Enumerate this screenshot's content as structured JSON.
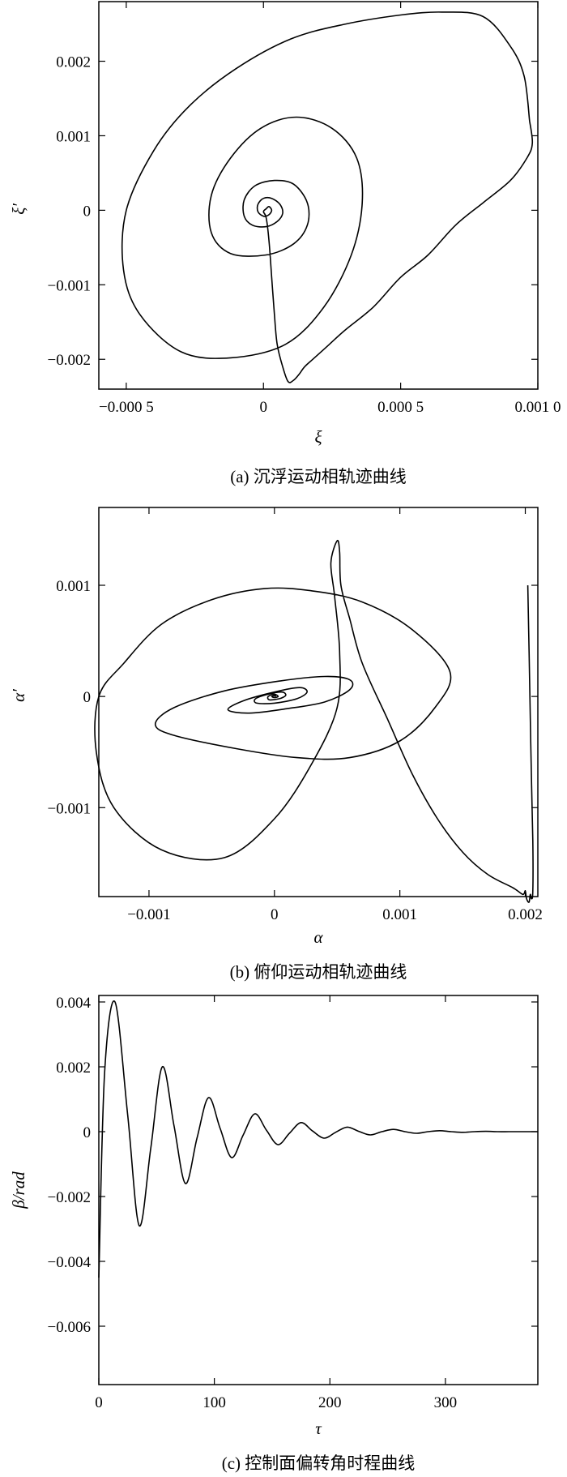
{
  "colors": {
    "line": "#000000",
    "background": "#ffffff"
  },
  "chart_data": [
    {
      "type": "line",
      "panel": "a",
      "caption": "(a) 沉浮运动相轨迹曲线",
      "xlabel": "ξ",
      "ylabel": "ξ′",
      "xlim": [
        -0.0006,
        0.001
      ],
      "ylim": [
        -0.0024,
        0.0028
      ],
      "xticks": [
        -0.0005,
        0,
        0.0005,
        0.001
      ],
      "xtick_labels": [
        "−0.000 5",
        "0",
        "0.000 5",
        "0.001 0"
      ],
      "yticks": [
        -0.002,
        -0.001,
        0,
        0.001,
        0.002
      ],
      "ytick_labels": [
        "−0.002",
        "−0.001",
        "0",
        "0.001",
        "0.002"
      ],
      "grid": false,
      "series": [
        {
          "x": [
            0.00097,
            0.00095,
            0.0009,
            0.0008,
            0.00065,
            0.0005,
            0.0003,
            0.0001,
            -0.0001,
            -0.00027,
            -0.0004,
            -0.0005,
            -0.00051,
            -0.00045,
            -0.0003,
            -0.00012,
            8e-05,
            0.00022,
            0.00032,
            0.00036,
            0.00034,
            0.00025,
            0.00012,
            -1e-05,
            -0.00012,
            -0.00019,
            -0.00019,
            -0.00012,
            1e-05,
            0.00011,
            0.00016,
            0.00016,
            0.00011,
            4e-05,
            -3e-05,
            -7e-05,
            -7e-05,
            -4e-05,
            1e-05,
            5e-05,
            7e-05,
            6e-05,
            3e-05,
            0.0,
            -2e-05,
            -2e-05,
            0.0,
            2e-05,
            3e-05,
            2e-05,
            1e-05,
            0.0,
            1e-05,
            2e-05,
            3e-05,
            4e-05,
            5e-05,
            7e-05,
            9e-05,
            0.00011,
            0.00013,
            0.00015,
            0.00018,
            0.00024,
            0.0003,
            0.0004,
            0.0005,
            0.0006,
            0.0007,
            0.0008,
            0.0009,
            0.00096,
            0.00098,
            0.00097
          ],
          "y": [
            0.0012,
            0.0018,
            0.0022,
            0.0026,
            0.00266,
            0.00262,
            0.0025,
            0.0023,
            0.0019,
            0.0014,
            0.0008,
            0.0,
            -0.0008,
            -0.0014,
            -0.0019,
            -0.00198,
            -0.0018,
            -0.0013,
            -0.0006,
            0.0001,
            0.0007,
            0.0011,
            0.00125,
            0.0011,
            0.0007,
            0.0002,
            -0.0003,
            -0.00058,
            -0.0006,
            -0.00045,
            -0.0002,
            0.0001,
            0.00035,
            0.0004,
            0.00033,
            0.00014,
            -8e-05,
            -0.0002,
            -0.00022,
            -0.00015,
            -4e-05,
            8e-05,
            0.00016,
            0.00016,
            8e-05,
            -2e-05,
            -8e-05,
            -6e-05,
            0.0,
            5e-05,
            2e-05,
            -2e-05,
            -0.0001,
            -0.0004,
            -0.0009,
            -0.0014,
            -0.0018,
            -0.0021,
            -0.0023,
            -0.00228,
            -0.0022,
            -0.0021,
            -0.002,
            -0.0018,
            -0.0016,
            -0.0013,
            -0.0009,
            -0.0006,
            -0.0002,
            0.0001,
            0.0004,
            0.0007,
            0.0009,
            0.0012
          ]
        }
      ]
    },
    {
      "type": "line",
      "panel": "b",
      "caption": "(b) 俯仰运动相轨迹曲线",
      "xlabel": "α",
      "ylabel": "α′",
      "xlim": [
        -0.0014,
        0.0021
      ],
      "ylim": [
        -0.0018,
        0.0017
      ],
      "xticks": [
        -0.001,
        0,
        0.001,
        0.002
      ],
      "xtick_labels": [
        "−0.001",
        "0",
        "0.001",
        "0.002"
      ],
      "yticks": [
        -0.001,
        0,
        0.001
      ],
      "ytick_labels": [
        "−0.001",
        "0",
        "0.001"
      ],
      "grid": false,
      "series": [
        {
          "x": [
            0.00202,
            0.00203,
            0.00204,
            0.00205,
            0.00206,
            0.00206,
            0.00205,
            0.00204,
            0.00203,
            0.00201,
            0.002,
            0.00198,
            0.0019,
            0.0017,
            0.0015,
            0.0013,
            0.0011,
            0.0009,
            0.0007,
            0.0006,
            0.00053,
            0.00052,
            0.0005,
            0.00045,
            0.00048,
            0.00052,
            0.0005,
            0.0003,
            0.0,
            -0.0004,
            -0.0009,
            -0.00128,
            -0.00142,
            -0.0014,
            -0.0012,
            -0.0009,
            -0.0005,
            -8e-05,
            0.0003,
            0.0007,
            0.0011,
            0.0014,
            0.00128,
            0.001,
            0.0006,
            0.00018,
            -0.0003,
            -0.0008,
            -0.00095,
            -0.0008,
            -0.0004,
            5e-05,
            0.0004,
            0.0006,
            0.0006,
            0.0004,
            0.0001,
            -0.0002,
            -0.00037,
            -0.00025,
            0.0,
            0.0002,
            0.00026,
            0.00018,
            0.0,
            -0.00014,
            -0.00015,
            -5e-05,
            6e-05,
            9e-05,
            4e-05,
            -4e-05,
            -5e-05,
            0.0,
            3e-05,
            0.0,
            -2e-05,
            1e-05,
            0.0
          ],
          "y": [
            0.001,
            0.0004,
            -0.0002,
            -0.0008,
            -0.0013,
            -0.00175,
            -0.00182,
            -0.00178,
            -0.00185,
            -0.00182,
            -0.00175,
            -0.00178,
            -0.00172,
            -0.0016,
            -0.0014,
            -0.0011,
            -0.0007,
            -0.0002,
            0.0003,
            0.0007,
            0.001,
            0.0013,
            0.0014,
            0.0012,
            0.0009,
            0.0004,
            -0.0001,
            -0.0006,
            -0.0011,
            -0.00145,
            -0.00138,
            -0.001,
            -0.0005,
            0.0,
            0.0003,
            0.00065,
            0.00087,
            0.00097,
            0.00095,
            0.00085,
            0.0006,
            0.00022,
            -0.0001,
            -0.0004,
            -0.00055,
            -0.00055,
            -0.00047,
            -0.00035,
            -0.00025,
            -0.0001,
            5e-05,
            0.00014,
            0.00018,
            0.00015,
            6e-05,
            -5e-05,
            -0.00011,
            -0.00015,
            -0.00012,
            -4e-05,
            4e-05,
            8e-05,
            4e-05,
            -2e-05,
            -6e-05,
            -6e-05,
            -2e-05,
            2e-05,
            4e-05,
            1e-05,
            -2e-05,
            -3e-05,
            0.0,
            2e-05,
            0.0,
            -1e-05,
            0.0,
            1e-05,
            0.0
          ]
        }
      ]
    },
    {
      "type": "line",
      "panel": "c",
      "caption": "(c) 控制面偏转角时程曲线",
      "xlabel": "τ",
      "ylabel": "β/rad",
      "xlim": [
        0,
        380
      ],
      "ylim": [
        -0.0078,
        0.0042
      ],
      "xticks": [
        0,
        100,
        200,
        300
      ],
      "xtick_labels": [
        "0",
        "100",
        "200",
        "300"
      ],
      "yticks": [
        -0.006,
        -0.004,
        -0.002,
        0,
        0.002,
        0.004
      ],
      "ytick_labels": [
        "−0.006",
        "−0.004",
        "0",
        "0.002",
        "0.004"
      ],
      "ytick_labels_all": [
        "−0.006",
        "−0.004",
        "−0.002",
        "0",
        "0.002",
        "0.004"
      ],
      "grid": false,
      "series": [
        {
          "x": [
            0,
            5,
            14,
            25,
            35,
            45,
            55,
            65,
            75,
            85,
            95,
            105,
            115,
            125,
            135,
            145,
            155,
            165,
            175,
            185,
            195,
            205,
            215,
            225,
            235,
            245,
            255,
            265,
            275,
            285,
            295,
            305,
            315,
            325,
            335,
            345,
            355,
            365,
            380
          ],
          "y": [
            -0.0045,
            0.0018,
            0.004,
            0.0005,
            -0.0029,
            -0.0005,
            0.002,
            0.0002,
            -0.0016,
            -0.0002,
            0.00105,
            0.0001,
            -0.0008,
            -0.0001,
            0.00055,
            5e-05,
            -0.0004,
            -5e-05,
            0.00028,
            2e-05,
            -0.0002,
            -2e-05,
            0.00014,
            1e-05,
            -0.0001,
            0.0,
            7e-05,
            0.0,
            -5e-05,
            0.0,
            3e-05,
            0.0,
            -2e-05,
            0.0,
            1e-05,
            0.0,
            0.0,
            0.0,
            0.0
          ]
        }
      ]
    }
  ]
}
